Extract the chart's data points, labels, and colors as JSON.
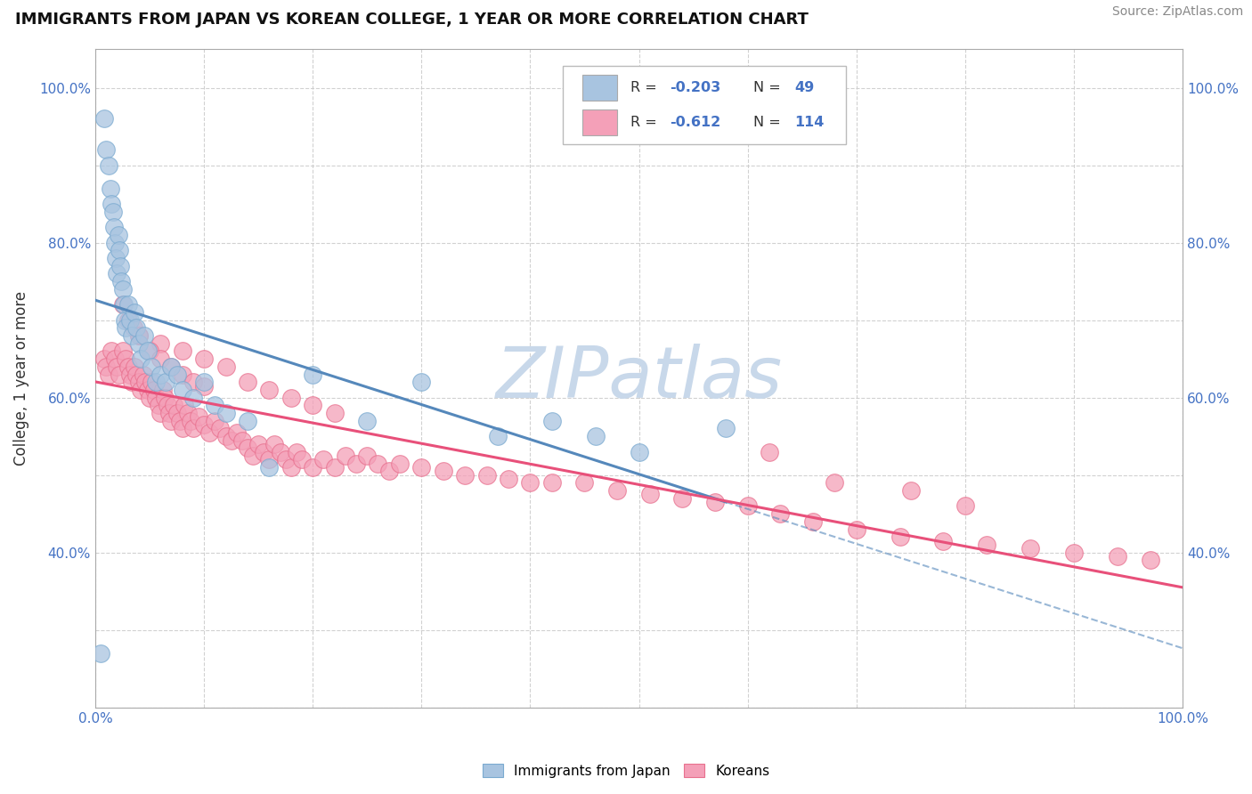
{
  "title": "IMMIGRANTS FROM JAPAN VS KOREAN COLLEGE, 1 YEAR OR MORE CORRELATION CHART",
  "source": "Source: ZipAtlas.com",
  "ylabel": "College, 1 year or more",
  "japan_color": "#a8c4e0",
  "japan_edge_color": "#7aaad0",
  "korean_color": "#f4a0b8",
  "korean_edge_color": "#e8708e",
  "japan_line_color": "#5588bb",
  "korean_line_color": "#e8507a",
  "japan_R": -0.203,
  "japan_N": 49,
  "korean_R": -0.612,
  "korean_N": 114,
  "watermark": "ZIPatlas",
  "watermark_color": "#c8d8ea",
  "grid_color": "#cccccc",
  "spine_color": "#aaaaaa",
  "tick_color": "#4472c4",
  "title_color": "#111111",
  "source_color": "#888888",
  "legend_text_color": "#333333",
  "legend_value_color": "#4472c4",
  "xlim": [
    0.0,
    1.0
  ],
  "ylim": [
    0.2,
    1.05
  ],
  "x_ticks_pos": [
    0.0,
    0.1,
    0.2,
    0.3,
    0.4,
    0.5,
    0.6,
    0.7,
    0.8,
    0.9,
    1.0
  ],
  "x_tick_labels": [
    "0.0%",
    "",
    "",
    "",
    "",
    "",
    "",
    "",
    "",
    "",
    "100.0%"
  ],
  "y_ticks_pos": [
    0.2,
    0.3,
    0.4,
    0.5,
    0.6,
    0.7,
    0.8,
    0.9,
    1.0
  ],
  "y_tick_labels": [
    "",
    "",
    "40.0%",
    "",
    "60.0%",
    "",
    "80.0%",
    "",
    "100.0%"
  ],
  "japan_x": [
    0.005,
    0.008,
    0.01,
    0.012,
    0.014,
    0.015,
    0.016,
    0.017,
    0.018,
    0.019,
    0.02,
    0.021,
    0.022,
    0.023,
    0.024,
    0.025,
    0.026,
    0.027,
    0.028,
    0.03,
    0.032,
    0.034,
    0.036,
    0.038,
    0.04,
    0.042,
    0.045,
    0.048,
    0.052,
    0.056,
    0.06,
    0.065,
    0.07,
    0.075,
    0.08,
    0.09,
    0.1,
    0.11,
    0.12,
    0.14,
    0.16,
    0.2,
    0.25,
    0.3,
    0.37,
    0.42,
    0.46,
    0.5,
    0.58
  ],
  "japan_y": [
    0.27,
    0.96,
    0.92,
    0.9,
    0.87,
    0.85,
    0.84,
    0.82,
    0.8,
    0.78,
    0.76,
    0.81,
    0.79,
    0.77,
    0.75,
    0.74,
    0.72,
    0.7,
    0.69,
    0.72,
    0.7,
    0.68,
    0.71,
    0.69,
    0.67,
    0.65,
    0.68,
    0.66,
    0.64,
    0.62,
    0.63,
    0.62,
    0.64,
    0.63,
    0.61,
    0.6,
    0.62,
    0.59,
    0.58,
    0.57,
    0.51,
    0.63,
    0.57,
    0.62,
    0.55,
    0.57,
    0.55,
    0.53,
    0.56
  ],
  "korean_x": [
    0.008,
    0.01,
    0.012,
    0.015,
    0.018,
    0.02,
    0.022,
    0.025,
    0.028,
    0.03,
    0.032,
    0.034,
    0.036,
    0.038,
    0.04,
    0.042,
    0.044,
    0.046,
    0.048,
    0.05,
    0.052,
    0.054,
    0.056,
    0.058,
    0.06,
    0.062,
    0.064,
    0.066,
    0.068,
    0.07,
    0.072,
    0.075,
    0.078,
    0.08,
    0.082,
    0.085,
    0.088,
    0.09,
    0.095,
    0.1,
    0.105,
    0.11,
    0.115,
    0.12,
    0.125,
    0.13,
    0.135,
    0.14,
    0.145,
    0.15,
    0.155,
    0.16,
    0.165,
    0.17,
    0.175,
    0.18,
    0.185,
    0.19,
    0.2,
    0.21,
    0.22,
    0.23,
    0.24,
    0.25,
    0.26,
    0.27,
    0.28,
    0.3,
    0.32,
    0.34,
    0.36,
    0.38,
    0.4,
    0.42,
    0.45,
    0.48,
    0.51,
    0.54,
    0.57,
    0.6,
    0.04,
    0.06,
    0.08,
    0.1,
    0.12,
    0.14,
    0.16,
    0.18,
    0.2,
    0.22,
    0.025,
    0.03,
    0.035,
    0.04,
    0.05,
    0.06,
    0.07,
    0.08,
    0.09,
    0.1,
    0.63,
    0.66,
    0.7,
    0.74,
    0.78,
    0.82,
    0.86,
    0.9,
    0.94,
    0.97,
    0.62,
    0.68,
    0.75,
    0.8
  ],
  "korean_y": [
    0.65,
    0.64,
    0.63,
    0.66,
    0.65,
    0.64,
    0.63,
    0.66,
    0.65,
    0.64,
    0.63,
    0.62,
    0.64,
    0.63,
    0.62,
    0.61,
    0.63,
    0.62,
    0.61,
    0.6,
    0.62,
    0.61,
    0.6,
    0.59,
    0.58,
    0.61,
    0.6,
    0.59,
    0.58,
    0.57,
    0.59,
    0.58,
    0.57,
    0.56,
    0.59,
    0.58,
    0.57,
    0.56,
    0.575,
    0.565,
    0.555,
    0.57,
    0.56,
    0.55,
    0.545,
    0.555,
    0.545,
    0.535,
    0.525,
    0.54,
    0.53,
    0.52,
    0.54,
    0.53,
    0.52,
    0.51,
    0.53,
    0.52,
    0.51,
    0.52,
    0.51,
    0.525,
    0.515,
    0.525,
    0.515,
    0.505,
    0.515,
    0.51,
    0.505,
    0.5,
    0.5,
    0.495,
    0.49,
    0.49,
    0.49,
    0.48,
    0.475,
    0.47,
    0.465,
    0.46,
    0.68,
    0.67,
    0.66,
    0.65,
    0.64,
    0.62,
    0.61,
    0.6,
    0.59,
    0.58,
    0.72,
    0.7,
    0.69,
    0.68,
    0.66,
    0.65,
    0.64,
    0.63,
    0.62,
    0.615,
    0.45,
    0.44,
    0.43,
    0.42,
    0.415,
    0.41,
    0.405,
    0.4,
    0.395,
    0.39,
    0.53,
    0.49,
    0.48,
    0.46
  ]
}
